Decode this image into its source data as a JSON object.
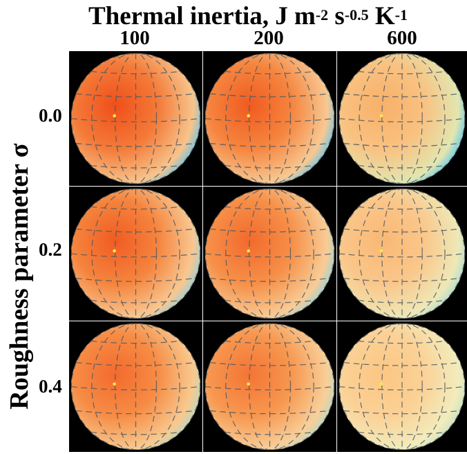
{
  "figure": {
    "title": "Thermal inertia, J m",
    "title_exp1": "-2",
    "title_mid": " s",
    "title_exp2": "-0.5",
    "title_mid2": " K",
    "title_exp3": "-1",
    "ylabel": "Roughness parameter σ",
    "columns": [
      {
        "label": "100"
      },
      {
        "label": "200"
      },
      {
        "label": "600"
      }
    ],
    "rows": [
      {
        "label": "0.0"
      },
      {
        "label": "0.2"
      },
      {
        "label": "0.4"
      }
    ],
    "panels": [
      {
        "row": 0,
        "col": 0,
        "core": "#ef4f1a",
        "mid": "#f47a38",
        "edge": "#f7c48c",
        "limb": "#5ec4f0"
      },
      {
        "row": 0,
        "col": 1,
        "core": "#f05a20",
        "mid": "#f5853f",
        "edge": "#f7c892",
        "limb": "#62c6f0"
      },
      {
        "row": 0,
        "col": 2,
        "core": "#f8b069",
        "mid": "#f9c180",
        "edge": "#e2e6b0",
        "limb": "#55c8f2"
      },
      {
        "row": 1,
        "col": 0,
        "core": "#f05b22",
        "mid": "#f5843d",
        "edge": "#f8c791",
        "limb": "#8ed2de"
      },
      {
        "row": 1,
        "col": 1,
        "core": "#f26a2c",
        "mid": "#f68f48",
        "edge": "#f8cc96",
        "limb": "#92d4de"
      },
      {
        "row": 1,
        "col": 2,
        "core": "#f9b874",
        "mid": "#fac68a",
        "edge": "#eee8b6",
        "limb": "#a8dcd6"
      },
      {
        "row": 2,
        "col": 0,
        "core": "#f36a2d",
        "mid": "#f68c45",
        "edge": "#f8c98f",
        "limb": "#b0d8c8"
      },
      {
        "row": 2,
        "col": 1,
        "core": "#f37434",
        "mid": "#f7974f",
        "edge": "#f8cf99",
        "limb": "#b4dac8"
      },
      {
        "row": 2,
        "col": 2,
        "core": "#fbc682",
        "mid": "#fbd196",
        "edge": "#f2ecbc",
        "limb": "#c6e2c4"
      }
    ],
    "subsolar_color": "#ffe84a",
    "grid_line_color": "#4a5a66"
  }
}
